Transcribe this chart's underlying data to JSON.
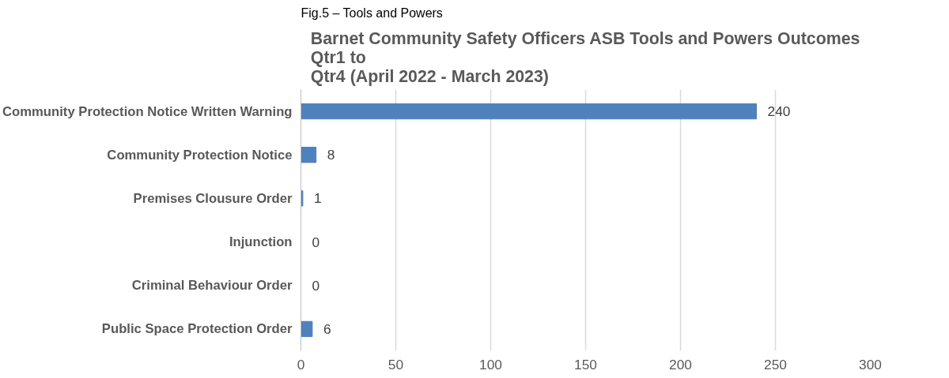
{
  "chart_data": {
    "type": "bar",
    "orientation": "horizontal",
    "title": "Barnet Community Safety Officers ASB Tools and Powers Outcomes\nQtr1 to\nQtr4 (April 2022 - March 2023)",
    "annotations": [
      "Fig.5 – Tools and Powers"
    ],
    "categories": [
      "Community Protection Notice Written Warning",
      "Community Protection Notice",
      "Premises Clousure Order",
      "Injunction",
      "Criminal Behaviour Order",
      "Public Space Protection Order"
    ],
    "values": [
      240,
      8,
      1,
      0,
      0,
      6
    ],
    "color": "#4f81bd",
    "xlim": [
      0,
      300
    ],
    "xticks": [
      0,
      50,
      100,
      150,
      200,
      250,
      300
    ],
    "grid": "x",
    "data_labels": true
  }
}
